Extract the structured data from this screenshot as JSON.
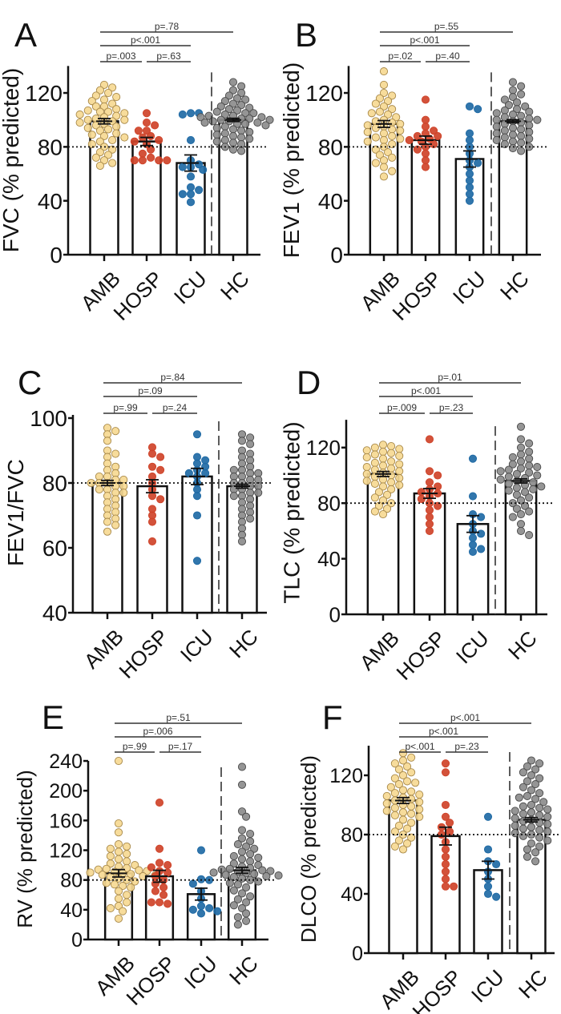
{
  "chart_data": [
    {
      "type": "bar",
      "panel": "A",
      "ylabel": "FVC (% predicted)",
      "categories": [
        "AMB",
        "HOSP",
        "ICU",
        "HC"
      ],
      "yticks": [
        0,
        40,
        80,
        120
      ],
      "ylim": [
        0,
        140
      ],
      "reference_line": 80,
      "means": [
        99,
        84,
        68,
        100
      ],
      "sem": [
        2,
        3,
        6,
        1.2
      ],
      "points": [
        [
          126,
          124,
          122,
          120,
          118,
          117,
          115,
          114,
          112,
          110,
          110,
          108,
          107,
          106,
          106,
          105,
          104,
          103,
          102,
          101,
          100,
          100,
          99,
          98,
          97,
          96,
          95,
          94,
          93,
          92,
          90,
          89,
          88,
          87,
          85,
          84,
          82,
          80,
          78,
          76,
          74,
          72,
          70,
          68,
          66
        ],
        [
          105,
          98,
          96,
          92,
          92,
          88,
          87,
          85,
          84,
          82,
          78,
          75,
          72,
          70,
          70,
          70,
          70
        ],
        [
          105,
          105,
          104,
          85,
          70,
          67,
          65,
          65,
          63,
          58,
          50,
          48,
          45,
          45,
          39
        ],
        [
          128,
          125,
          122,
          120,
          118,
          116,
          115,
          114,
          112,
          111,
          110,
          109,
          108,
          107,
          106,
          105,
          105,
          104,
          103,
          103,
          102,
          102,
          101,
          101,
          100,
          100,
          99,
          99,
          98,
          98,
          97,
          97,
          96,
          95,
          94,
          93,
          92,
          91,
          90,
          89,
          88,
          87,
          86,
          85,
          84,
          83,
          82,
          80,
          78,
          77
        ]
      ],
      "comparisons": [
        {
          "label": "p=.78",
          "from": "AMB",
          "to": "HC"
        },
        {
          "label": "p<.001",
          "from": "AMB",
          "to": "ICU"
        },
        {
          "label": "p=.003",
          "from": "AMB",
          "to": "HOSP"
        },
        {
          "label": "p=.63",
          "from": "HOSP",
          "to": "ICU"
        }
      ]
    },
    {
      "type": "bar",
      "panel": "B",
      "ylabel": "FEV1 (% predicted)",
      "categories": [
        "AMB",
        "HOSP",
        "ICU",
        "HC"
      ],
      "yticks": [
        0,
        40,
        80,
        120
      ],
      "ylim": [
        0,
        140
      ],
      "reference_line": 80,
      "means": [
        97,
        85,
        71,
        99
      ],
      "sem": [
        2.5,
        3,
        6,
        1.2
      ],
      "points": [
        [
          136,
          126,
          120,
          118,
          116,
          114,
          112,
          110,
          108,
          106,
          105,
          104,
          102,
          100,
          99,
          98,
          97,
          96,
          95,
          94,
          93,
          92,
          91,
          90,
          88,
          87,
          86,
          85,
          84,
          82,
          80,
          78,
          76,
          74,
          72,
          70,
          68,
          65,
          62,
          58
        ],
        [
          115,
          100,
          95,
          92,
          90,
          88,
          88,
          86,
          85,
          84,
          82,
          80,
          78,
          75,
          70,
          65
        ],
        [
          110,
          108,
          90,
          85,
          80,
          75,
          70,
          68,
          65,
          60,
          55,
          50,
          45,
          40
        ],
        [
          128,
          125,
          122,
          119,
          117,
          115,
          113,
          111,
          110,
          108,
          107,
          106,
          105,
          104,
          103,
          102,
          101,
          100,
          100,
          99,
          98,
          97,
          96,
          95,
          94,
          93,
          92,
          91,
          90,
          89,
          88,
          87,
          86,
          85,
          84,
          83,
          82,
          80,
          79,
          77
        ]
      ],
      "comparisons": [
        {
          "label": "p=.55",
          "from": "AMB",
          "to": "HC"
        },
        {
          "label": "p<.001",
          "from": "AMB",
          "to": "ICU"
        },
        {
          "label": "p=.02",
          "from": "AMB",
          "to": "HOSP"
        },
        {
          "label": "p=.40",
          "from": "HOSP",
          "to": "ICU"
        }
      ]
    },
    {
      "type": "bar",
      "panel": "C",
      "ylabel": "FEV1/FVC",
      "categories": [
        "AMB",
        "HOSP",
        "ICU",
        "HC"
      ],
      "yticks": [
        40,
        60,
        80,
        100
      ],
      "ylim": [
        40,
        100
      ],
      "reference_line": 80,
      "means": [
        80,
        79,
        82,
        79
      ],
      "sem": [
        0.8,
        2,
        2.5,
        0.6
      ],
      "points": [
        [
          97,
          96,
          95,
          93,
          90,
          89,
          88,
          86,
          85,
          84,
          83,
          82,
          82,
          81,
          81,
          80,
          80,
          80,
          79,
          79,
          78,
          78,
          77,
          77,
          76,
          75,
          74,
          73,
          72,
          71,
          70,
          69,
          68,
          67,
          65
        ],
        [
          91,
          89,
          88,
          85,
          84,
          82,
          80,
          78,
          76,
          75,
          72,
          70,
          68,
          62
        ],
        [
          95,
          88,
          87,
          86,
          85,
          84,
          83,
          83,
          82,
          80,
          78,
          76,
          70,
          56
        ],
        [
          95,
          94,
          93,
          92,
          90,
          89,
          88,
          87,
          86,
          85,
          84,
          84,
          83,
          83,
          82,
          82,
          81,
          81,
          80,
          80,
          79,
          79,
          78,
          78,
          77,
          77,
          76,
          76,
          75,
          74,
          73,
          72,
          71,
          70,
          69,
          68,
          66,
          64,
          62
        ]
      ],
      "comparisons": [
        {
          "label": "p=.84",
          "from": "AMB",
          "to": "HC"
        },
        {
          "label": "p=.09",
          "from": "AMB",
          "to": "ICU"
        },
        {
          "label": "p=.99",
          "from": "AMB",
          "to": "HOSP"
        },
        {
          "label": "p=.24",
          "from": "HOSP",
          "to": "ICU"
        }
      ]
    },
    {
      "type": "bar",
      "panel": "D",
      "ylabel": "TLC (% predicted)",
      "categories": [
        "AMB",
        "HOSP",
        "ICU",
        "HC"
      ],
      "yticks": [
        0,
        40,
        80,
        120
      ],
      "ylim": [
        0,
        140
      ],
      "reference_line": 80,
      "means": [
        101,
        87,
        65,
        96
      ],
      "sem": [
        1.8,
        3.5,
        6,
        1.5
      ],
      "points": [
        [
          122,
          121,
          120,
          119,
          118,
          117,
          116,
          115,
          114,
          113,
          112,
          110,
          109,
          108,
          107,
          106,
          105,
          104,
          103,
          102,
          101,
          100,
          99,
          98,
          97,
          96,
          95,
          94,
          93,
          92,
          90,
          88,
          86,
          84,
          82,
          80,
          78,
          76,
          74,
          72
        ],
        [
          126,
          103,
          100,
          95,
          92,
          90,
          88,
          87,
          85,
          83,
          80,
          78,
          75,
          70,
          65,
          60
        ],
        [
          112,
          85,
          72,
          70,
          65,
          60,
          58,
          55,
          50,
          47,
          45
        ],
        [
          135,
          126,
          123,
          120,
          117,
          115,
          113,
          112,
          110,
          108,
          107,
          106,
          105,
          104,
          103,
          102,
          101,
          100,
          99,
          98,
          97,
          96,
          95,
          94,
          93,
          92,
          91,
          90,
          89,
          88,
          86,
          84,
          82,
          80,
          78,
          76,
          74,
          72,
          70,
          65,
          60,
          57
        ]
      ],
      "comparisons": [
        {
          "label": "p=.01",
          "from": "AMB",
          "to": "HC"
        },
        {
          "label": "p<.001",
          "from": "AMB",
          "to": "ICU"
        },
        {
          "label": "p=.009",
          "from": "AMB",
          "to": "HOSP"
        },
        {
          "label": "p=.23",
          "from": "HOSP",
          "to": "ICU"
        }
      ]
    },
    {
      "type": "bar",
      "panel": "E",
      "ylabel": "RV (% predicted)",
      "categories": [
        "AMB",
        "HOSP",
        "ICU",
        "HC"
      ],
      "yticks": [
        0,
        40,
        80,
        120,
        160,
        200,
        240
      ],
      "ylim": [
        0,
        240
      ],
      "reference_line": 80,
      "means": [
        89,
        85,
        61,
        93
      ],
      "sem": [
        5,
        8,
        8,
        4
      ],
      "points": [
        [
          240,
          156,
          144,
          128,
          125,
          122,
          118,
          115,
          112,
          108,
          105,
          102,
          100,
          98,
          96,
          95,
          94,
          93,
          92,
          91,
          90,
          89,
          88,
          87,
          86,
          85,
          84,
          82,
          80,
          78,
          76,
          74,
          72,
          70,
          65,
          60,
          55,
          50,
          45,
          42,
          38,
          28
        ],
        [
          184,
          122,
          103,
          100,
          97,
          92,
          90,
          85,
          80,
          75,
          70,
          65,
          60,
          50,
          48,
          50
        ],
        [
          120,
          81,
          80,
          75,
          65,
          55,
          45,
          42,
          40,
          38,
          35
        ],
        [
          232,
          208,
          172,
          165,
          147,
          142,
          136,
          132,
          128,
          125,
          122,
          118,
          115,
          112,
          110,
          108,
          105,
          102,
          100,
          98,
          96,
          95,
          94,
          93,
          92,
          91,
          90,
          89,
          88,
          87,
          86,
          85,
          84,
          82,
          80,
          78,
          76,
          74,
          70,
          66,
          62,
          58,
          54,
          50,
          46,
          42,
          35,
          30,
          25,
          20
        ]
      ],
      "comparisons": [
        {
          "label": "p=.51",
          "from": "AMB",
          "to": "HC"
        },
        {
          "label": "p=.006",
          "from": "AMB",
          "to": "ICU"
        },
        {
          "label": "p=.99",
          "from": "AMB",
          "to": "HOSP"
        },
        {
          "label": "p=.17",
          "from": "HOSP",
          "to": "ICU"
        }
      ]
    },
    {
      "type": "bar",
      "panel": "F",
      "ylabel": "DLCO (% predicted)",
      "categories": [
        "AMB",
        "HOSP",
        "ICU",
        "HC"
      ],
      "yticks": [
        0,
        40,
        80,
        120
      ],
      "ylim": [
        0,
        140
      ],
      "reference_line": 80,
      "means": [
        103,
        79,
        56,
        90
      ],
      "sem": [
        2,
        6,
        6,
        1.5
      ],
      "points": [
        [
          135,
          132,
          130,
          128,
          126,
          124,
          122,
          120,
          118,
          116,
          115,
          114,
          112,
          110,
          109,
          108,
          107,
          106,
          105,
          104,
          103,
          102,
          101,
          100,
          99,
          98,
          97,
          96,
          95,
          94,
          93,
          92,
          90,
          88,
          86,
          84,
          82,
          80,
          78,
          76,
          74,
          72,
          70
        ],
        [
          128,
          122,
          100,
          92,
          88,
          85,
          82,
          80,
          75,
          70,
          65,
          60,
          55,
          50,
          45,
          45
        ],
        [
          92,
          70,
          62,
          60,
          55,
          50,
          45,
          40,
          38
        ],
        [
          130,
          128,
          126,
          124,
          122,
          120,
          118,
          116,
          114,
          112,
          110,
          108,
          106,
          105,
          104,
          102,
          100,
          99,
          98,
          97,
          96,
          95,
          94,
          93,
          92,
          91,
          90,
          89,
          88,
          87,
          86,
          85,
          84,
          83,
          82,
          81,
          80,
          79,
          78,
          76,
          74,
          72,
          70,
          68,
          65,
          62
        ]
      ],
      "comparisons": [
        {
          "label": "p<.001",
          "from": "AMB",
          "to": "HC"
        },
        {
          "label": "p<.001",
          "from": "AMB",
          "to": "ICU"
        },
        {
          "label": "p<.001",
          "from": "AMB",
          "to": "HOSP"
        },
        {
          "label": "p=.23",
          "from": "HOSP",
          "to": "ICU"
        }
      ]
    }
  ],
  "colors": {
    "AMB": {
      "fill": "#f6d992",
      "stroke": "#a8894a"
    },
    "HOSP": {
      "fill": "#cf4329",
      "stroke": "#cf4329"
    },
    "ICU": {
      "fill": "#1f6aa5",
      "stroke": "#1f6aa5"
    },
    "HC": {
      "fill": "#8c8c8c",
      "stroke": "#4a4a4a"
    }
  }
}
